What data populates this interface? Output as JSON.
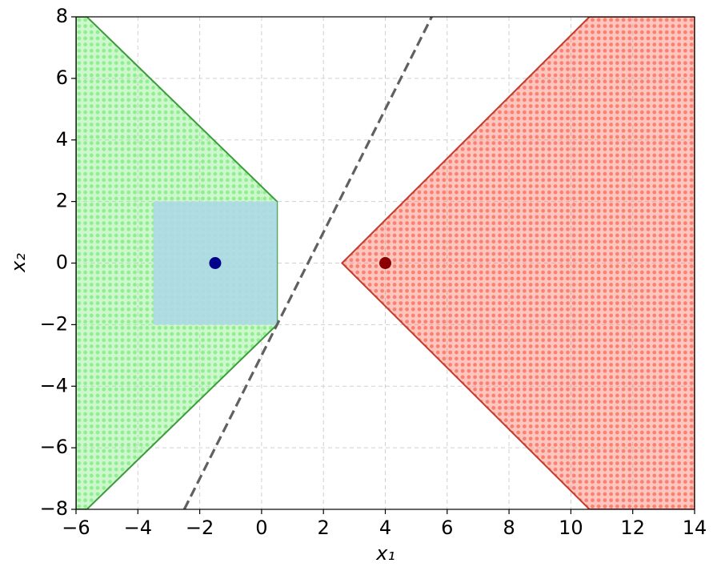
{
  "chart_data": {
    "type": "region",
    "xlabel": "x₁",
    "ylabel": "x₂",
    "xlim": [
      -6,
      14
    ],
    "ylim": [
      -8,
      8
    ],
    "xticks": [
      {
        "value": -6,
        "label": "−6"
      },
      {
        "value": -4,
        "label": "−4"
      },
      {
        "value": -2,
        "label": "−2"
      },
      0,
      2,
      4,
      6,
      8,
      10,
      12,
      14
    ],
    "yticks": [
      {
        "value": -8,
        "label": "−8"
      },
      {
        "value": -6,
        "label": "−6"
      },
      {
        "value": -4,
        "label": "−4"
      },
      {
        "value": -2,
        "label": "−2"
      },
      0,
      2,
      4,
      6,
      8
    ],
    "grid": true,
    "regions": [
      {
        "color": "#90ee90",
        "edgecolor": "#3c9c3c",
        "x": [
          -6,
          -5.65,
          0.5,
          0.5,
          -5.65,
          -6
        ],
        "y": [
          8,
          8,
          2,
          -2,
          -8,
          -8
        ]
      },
      {
        "color": "#fa8072",
        "edgecolor": "#c43c2c",
        "x": [
          14,
          10.6,
          2.6,
          10.6,
          14
        ],
        "y": [
          8,
          8,
          0,
          -8,
          -8
        ]
      }
    ],
    "box": {
      "color": "#add8e6",
      "x": [
        -3.5,
        0.5,
        0.5,
        -3.5
      ],
      "y": [
        -2,
        -2,
        2,
        2
      ]
    },
    "line": {
      "color": "#606060",
      "linestyle": "dashed",
      "x": [
        -2.5,
        5.5
      ],
      "y": [
        -8,
        8
      ]
    },
    "points": [
      {
        "color": "#00008b",
        "x": -1.5,
        "y": 0
      },
      {
        "color": "#8b0000",
        "x": 4,
        "y": 0
      }
    ]
  }
}
